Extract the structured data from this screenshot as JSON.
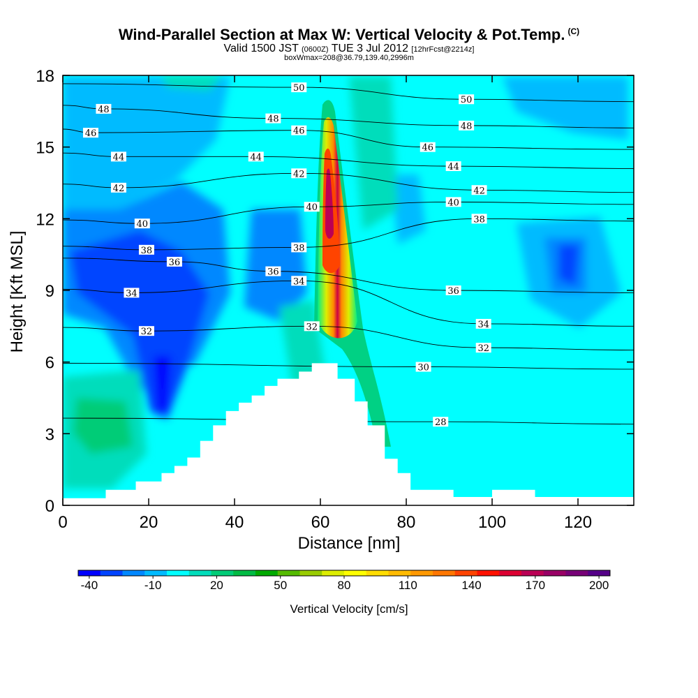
{
  "header": {
    "title": "Wind-Parallel Section at Max W: Vertical Velocity & Pot.Temp.",
    "title_tag": "(C)",
    "valid_prefix": "Valid 1500 JST",
    "valid_utc": "(0600Z)",
    "valid_date": "TUE 3 Jul 2012",
    "forecast": "[12hrFcst@2214z]",
    "boxinfo": "boxWmax=208@36.79,139.40,2996m"
  },
  "chart_data": {
    "type": "heatmap",
    "xlabel": "Distance [nm]",
    "ylabel": "Height [Kft MSL]",
    "xlim": [
      0,
      133
    ],
    "ylim": [
      0,
      18
    ],
    "x_ticks": [
      0,
      20,
      40,
      60,
      80,
      100,
      120
    ],
    "y_ticks": [
      0,
      3,
      6,
      9,
      12,
      15,
      18
    ],
    "colorbar": {
      "label": "Vertical Velocity [cm/s]",
      "tick_labels": [
        "-40",
        "-10",
        "20",
        "50",
        "80",
        "110",
        "140",
        "170",
        "200"
      ],
      "colors": [
        "#0000ff",
        "#0044ff",
        "#0088ff",
        "#00bbff",
        "#00ffff",
        "#00ddbb",
        "#00cc77",
        "#00bb44",
        "#00aa00",
        "#55bb00",
        "#99cc00",
        "#ddee00",
        "#ffff00",
        "#ffdd00",
        "#ffbb00",
        "#ff9900",
        "#ff7700",
        "#ff4400",
        "#ff1100",
        "#dd0033",
        "#bb0055",
        "#990066",
        "#770077",
        "#550088"
      ]
    },
    "terrain_profile": {
      "x": [
        0,
        10,
        10,
        17,
        17,
        23,
        23,
        26,
        26,
        29,
        29,
        32,
        32,
        35,
        35,
        38,
        38,
        41,
        41,
        44,
        44,
        47,
        47,
        50,
        50,
        55,
        55,
        58,
        58,
        64,
        64,
        68,
        68,
        71,
        71,
        75,
        75,
        78,
        78,
        81,
        81,
        91,
        91,
        100,
        100,
        110,
        110,
        133
      ],
      "z": [
        0.3,
        0.3,
        0.65,
        0.65,
        1.0,
        1.0,
        1.35,
        1.35,
        1.65,
        1.65,
        2.0,
        2.0,
        2.7,
        2.7,
        3.35,
        3.35,
        3.95,
        3.95,
        4.3,
        4.3,
        4.6,
        4.6,
        5.0,
        5.0,
        5.3,
        5.3,
        5.6,
        5.6,
        5.95,
        5.95,
        5.3,
        5.3,
        4.35,
        4.35,
        3.35,
        3.35,
        1.95,
        1.95,
        1.35,
        1.35,
        0.65,
        0.65,
        0.35,
        0.35,
        0.65,
        0.65,
        0.35,
        0.35
      ]
    },
    "vertical_velocity_regions": [
      {
        "name": "updraft-core",
        "x_center": 61.5,
        "z_center": 11.5,
        "peak": 208
      }
    ],
    "theta_contours": [
      {
        "value": 50,
        "labels": [
          [
            55,
            17.5
          ],
          [
            94,
            17.0
          ]
        ]
      },
      {
        "value": 48,
        "labels": [
          [
            9.5,
            16.6
          ],
          [
            49,
            16.2
          ],
          [
            94,
            15.9
          ]
        ]
      },
      {
        "value": 46,
        "labels": [
          [
            6.5,
            15.6
          ],
          [
            55,
            15.7
          ],
          [
            85,
            15.0
          ]
        ]
      },
      {
        "value": 44,
        "labels": [
          [
            13,
            14.6
          ],
          [
            45,
            14.6
          ],
          [
            91,
            14.2
          ]
        ]
      },
      {
        "value": 42,
        "labels": [
          [
            13,
            13.3
          ],
          [
            55,
            13.9
          ],
          [
            97,
            13.2
          ]
        ]
      },
      {
        "value": 40,
        "labels": [
          [
            18.5,
            11.8
          ],
          [
            58,
            12.5
          ],
          [
            91,
            12.7
          ]
        ]
      },
      {
        "value": 38,
        "labels": [
          [
            19.5,
            10.7
          ],
          [
            55,
            10.8
          ],
          [
            97,
            12.0
          ]
        ]
      },
      {
        "value": 36,
        "labels": [
          [
            26,
            10.2
          ],
          [
            49,
            9.8
          ],
          [
            91,
            9.0
          ]
        ]
      },
      {
        "value": 34,
        "labels": [
          [
            16,
            8.9
          ],
          [
            55,
            9.4
          ],
          [
            98,
            7.6
          ]
        ]
      },
      {
        "value": 32,
        "labels": [
          [
            19.5,
            7.3
          ],
          [
            58,
            7.5
          ],
          [
            98,
            6.6
          ]
        ]
      },
      {
        "value": 30,
        "labels": [
          [
            84,
            5.8
          ]
        ]
      },
      {
        "value": 28,
        "labels": [
          [
            88,
            3.5
          ]
        ]
      }
    ]
  }
}
